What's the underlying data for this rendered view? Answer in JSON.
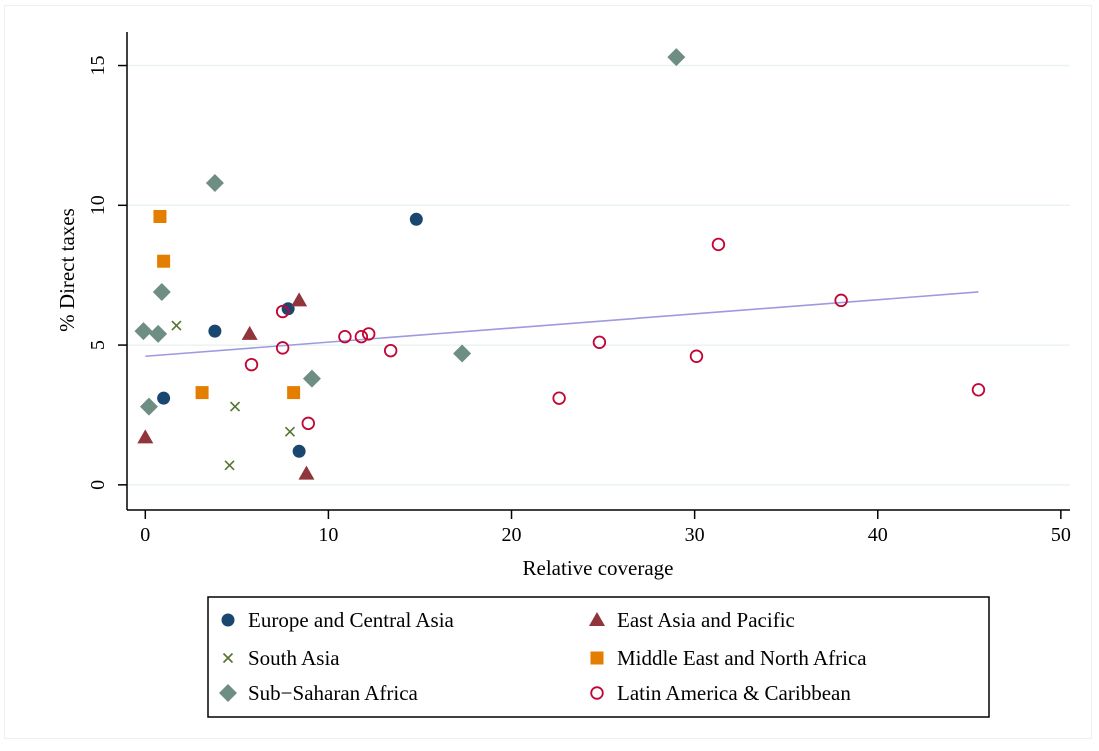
{
  "chart_data": {
    "type": "scatter",
    "title": "",
    "xlabel": "Relative coverage",
    "ylabel": "% Direct taxes",
    "xlim": [
      -1,
      50.5
    ],
    "ylim": [
      -0.9,
      16.2
    ],
    "xticks": [
      "0",
      "10",
      "20",
      "30",
      "40",
      "50"
    ],
    "yticks": [
      "0",
      "5",
      "10",
      "15"
    ],
    "grid": "horizontal",
    "legend_position": "bottom",
    "series": [
      {
        "name": "Europe and Central Asia",
        "marker": "circle",
        "color": "#1a476f",
        "points": [
          [
            1.0,
            3.1
          ],
          [
            3.8,
            5.5
          ],
          [
            7.8,
            6.3
          ],
          [
            8.4,
            1.2
          ],
          [
            14.8,
            9.5
          ]
        ]
      },
      {
        "name": "East Asia and Pacific",
        "marker": "triangle",
        "color": "#90353b",
        "points": [
          [
            0.0,
            1.7
          ],
          [
            5.7,
            5.4
          ],
          [
            8.4,
            6.6
          ],
          [
            8.8,
            0.4
          ]
        ]
      },
      {
        "name": "South Asia",
        "marker": "x",
        "color": "#55752f",
        "points": [
          [
            1.7,
            5.7
          ],
          [
            4.6,
            0.7
          ],
          [
            4.9,
            2.8
          ],
          [
            7.9,
            1.9
          ]
        ]
      },
      {
        "name": "Middle East and North Africa",
        "marker": "square",
        "color": "#e37e00",
        "points": [
          [
            0.8,
            9.6
          ],
          [
            1.0,
            8.0
          ],
          [
            3.1,
            3.3
          ],
          [
            8.1,
            3.3
          ]
        ]
      },
      {
        "name": "Sub−Saharan Africa",
        "marker": "diamond",
        "color": "#6e8e84",
        "points": [
          [
            -0.1,
            5.5
          ],
          [
            0.2,
            2.8
          ],
          [
            0.7,
            5.4
          ],
          [
            0.9,
            6.9
          ],
          [
            3.8,
            10.8
          ],
          [
            9.1,
            3.8
          ],
          [
            17.3,
            4.7
          ],
          [
            29.0,
            15.3
          ]
        ]
      },
      {
        "name": "Latin America & Caribbean",
        "marker": "hollow-circle",
        "color": "#c10534",
        "points": [
          [
            5.8,
            4.3
          ],
          [
            7.5,
            6.2
          ],
          [
            7.5,
            4.9
          ],
          [
            8.9,
            2.2
          ],
          [
            10.9,
            5.3
          ],
          [
            11.8,
            5.3
          ],
          [
            12.2,
            5.4
          ],
          [
            13.4,
            4.8
          ],
          [
            22.6,
            3.1
          ],
          [
            24.8,
            5.1
          ],
          [
            30.1,
            4.6
          ],
          [
            31.3,
            8.6
          ],
          [
            38.0,
            6.6
          ],
          [
            45.5,
            3.4
          ]
        ]
      }
    ],
    "fit_line": {
      "color": "#9e9ae0",
      "x": [
        0,
        45.5
      ],
      "y": [
        4.6,
        6.9
      ]
    }
  }
}
